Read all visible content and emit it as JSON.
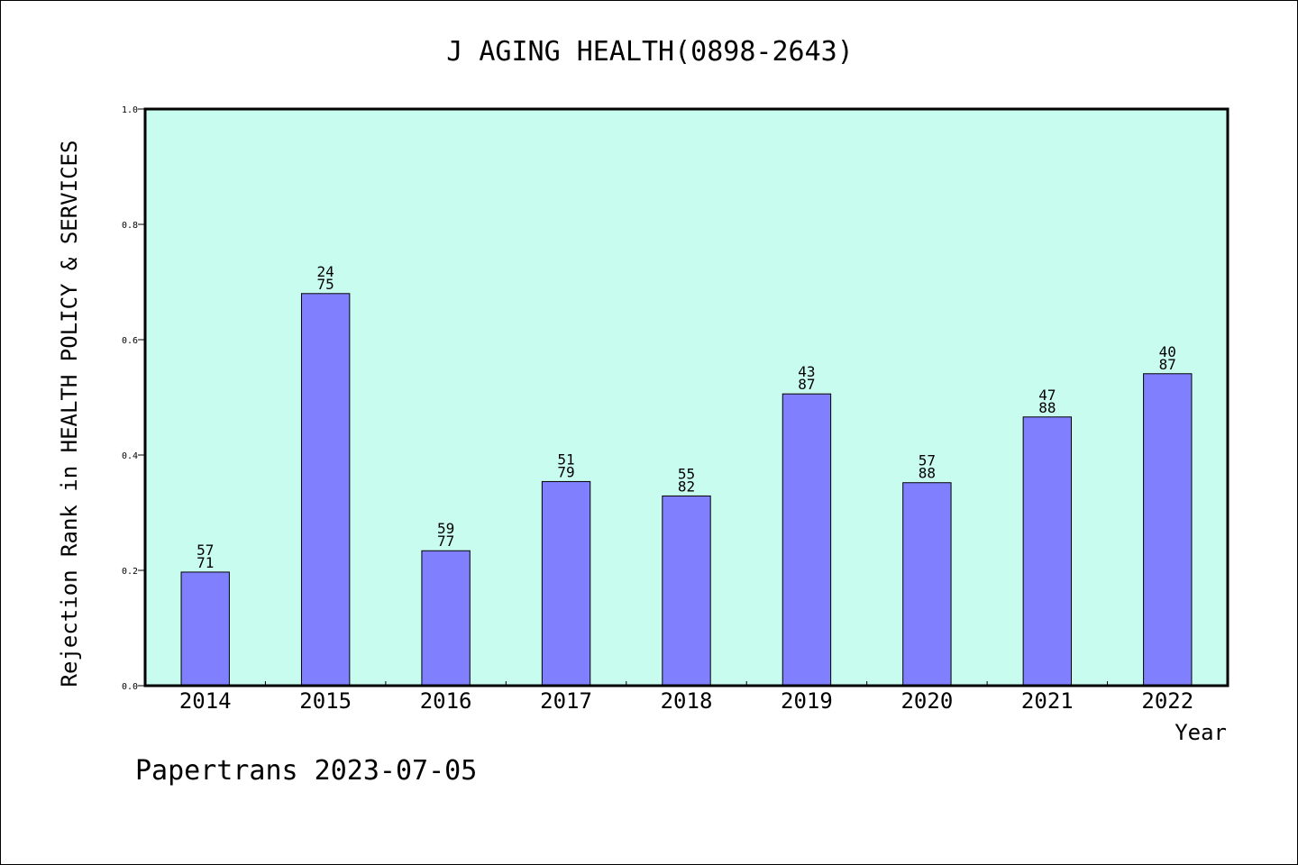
{
  "chart_data": {
    "type": "bar",
    "title": "J AGING HEALTH(0898-2643)",
    "xlabel": "Year",
    "ylabel": "Rejection Rank in HEALTH POLICY & SERVICES",
    "categories": [
      "2014",
      "2015",
      "2016",
      "2017",
      "2018",
      "2019",
      "2020",
      "2021",
      "2022"
    ],
    "values": [
      0.197,
      0.68,
      0.234,
      0.354,
      0.329,
      0.506,
      0.352,
      0.466,
      0.541
    ],
    "labels_top": [
      "57",
      "24",
      "59",
      "51",
      "55",
      "43",
      "57",
      "47",
      "40"
    ],
    "labels_bottom": [
      "71",
      "75",
      "77",
      "79",
      "82",
      "87",
      "88",
      "88",
      "87"
    ],
    "ylim": [
      0,
      1.0
    ],
    "yticks": [
      "0.0",
      "0.2",
      "0.4",
      "0.6",
      "0.8",
      "1.0"
    ],
    "grid": false,
    "colors": {
      "bar": "#8080ff",
      "plot_bg": "#c8fcee"
    }
  },
  "footer": "Papertrans 2023-07-05"
}
